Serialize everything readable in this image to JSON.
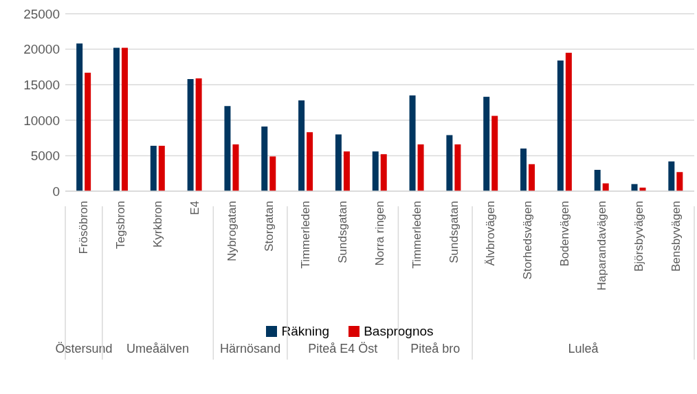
{
  "chart_data": {
    "type": "bar",
    "categories": [
      "Frösöbron",
      "Tegsbron",
      "Kyrkbron",
      "E4",
      "Nybrogatan",
      "Storgatan",
      "Timmerleden",
      "Sundsgatan",
      "Norra ringen",
      "Timmerleden",
      "Sundsgatan",
      "Älvbrovägen",
      "Storhedsvägen",
      "Bodenvägen",
      "Haparandavägen",
      "Björsbyvägen",
      "Bensbyvägen"
    ],
    "series": [
      {
        "name": "Räkning",
        "color": "#003660",
        "values": [
          20800,
          20200,
          6400,
          15800,
          12000,
          9100,
          12800,
          8000,
          5600,
          13500,
          7900,
          13300,
          6000,
          18400,
          3000,
          1000,
          4200
        ]
      },
      {
        "name": "Basprognos",
        "color": "#d90000",
        "values": [
          16700,
          20200,
          6400,
          15900,
          6600,
          4900,
          8300,
          5600,
          5200,
          6600,
          6600,
          10600,
          3800,
          19500,
          1100,
          500,
          2700
        ]
      }
    ],
    "annotations": [
      "Östersund",
      "Umeåälven",
      "Härnösand",
      "Piteå E4 Öst",
      "Piteå bro",
      "Luleå"
    ],
    "ylim": [
      0,
      25000
    ],
    "yticks": [
      0,
      5000,
      10000,
      15000,
      20000,
      25000
    ],
    "grid": "y",
    "legend": "bottom"
  }
}
